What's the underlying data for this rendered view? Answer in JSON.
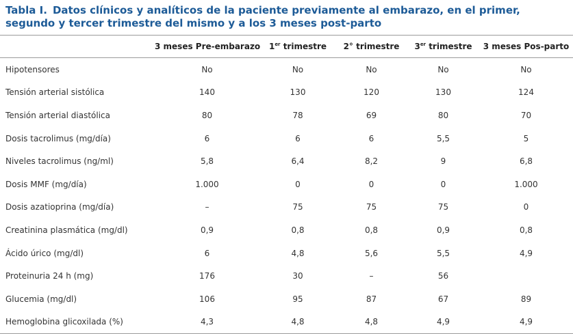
{
  "title": {
    "label": "Tabla I.",
    "text": "Datos clínicos y analíticos de la paciente previamente al embarazo, en el primer, segundo y tercer trimestre del mismo y a los 3 meses post-parto"
  },
  "table": {
    "columns": [
      {
        "pre": "3 meses Pre-embarazo"
      },
      {
        "pre": "1",
        "sup": "er",
        "post": " trimestre"
      },
      {
        "pre": "2° trimestre"
      },
      {
        "pre": "3",
        "sup": "er",
        "post": " trimestre"
      },
      {
        "pre": "3 meses Pos-parto"
      }
    ],
    "rows": [
      [
        "Hipotensores",
        "No",
        "No",
        "No",
        "No",
        "No"
      ],
      [
        "Tensión arterial sistólica",
        "140",
        "130",
        "120",
        "130",
        "124"
      ],
      [
        "Tensión arterial diastólica",
        "80",
        "78",
        "69",
        "80",
        "70"
      ],
      [
        "Dosis tacrolimus (mg/día)",
        "6",
        "6",
        "6",
        "5,5",
        "5"
      ],
      [
        "Niveles tacrolimus (ng/ml)",
        "5,8",
        "6,4",
        "8,2",
        "9",
        "6,8"
      ],
      [
        "Dosis MMF (mg/día)",
        "1.000",
        "0",
        "0",
        "0",
        "1.000"
      ],
      [
        "Dosis azatioprina (mg/día)",
        "–",
        "75",
        "75",
        "75",
        "0"
      ],
      [
        "Creatinina plasmática (mg/dl)",
        "0,9",
        "0,8",
        "0,8",
        "0,9",
        "0,8"
      ],
      [
        "Ácido úrico (mg/dl)",
        "6",
        "4,8",
        "5,6",
        "5,5",
        "4,9"
      ],
      [
        "Proteinuria 24 h (mg)",
        "176",
        "30",
        "–",
        "56",
        null
      ],
      [
        "Glucemia (mg/dl)",
        "106",
        "95",
        "87",
        "67",
        "89"
      ],
      [
        "Hemoglobina glicoxilada (%)",
        "4,3",
        "4,8",
        "4,8",
        "4,9",
        "4,9"
      ]
    ]
  }
}
